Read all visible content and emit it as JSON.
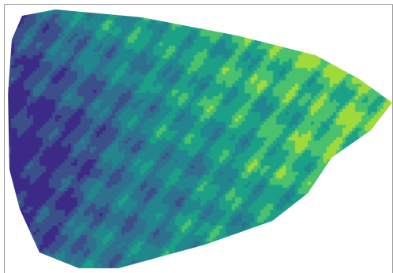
{
  "chart_data": {
    "type": "heatmap",
    "style": "filled-contour",
    "title": "",
    "xlabel": "",
    "ylabel": "",
    "colormap": "viridis",
    "levels": 7,
    "level_colors": [
      "#3b2a86",
      "#3a4f8a",
      "#2f6f8e",
      "#24868e",
      "#1fa187",
      "#4ac16d",
      "#9fda3a"
    ],
    "legend": "none",
    "grid": false,
    "axes": {
      "left_spine": true,
      "top_spine": true,
      "right_spine": true,
      "bottom_spine": false,
      "ticks": false
    },
    "x": [
      0,
      0.1,
      0.2,
      0.3,
      0.4,
      0.5,
      0.6,
      0.7,
      0.8,
      0.9,
      1.0
    ],
    "y": [
      0,
      0.125,
      0.25,
      0.375,
      0.5,
      0.625,
      0.75,
      0.875,
      1.0
    ],
    "z": [
      [
        1.2,
        1.8,
        2.6,
        3.4,
        3.8,
        4.0,
        4.2,
        4.4,
        4.6,
        4.8,
        5.0
      ],
      [
        0.8,
        1.6,
        2.4,
        3.0,
        3.4,
        3.8,
        4.0,
        4.2,
        4.6,
        4.8,
        5.0
      ],
      [
        0.6,
        1.4,
        2.0,
        2.8,
        3.2,
        3.6,
        3.8,
        4.0,
        4.2,
        4.6,
        4.8
      ],
      [
        0.4,
        1.0,
        1.8,
        2.4,
        3.0,
        3.4,
        3.6,
        3.8,
        4.2,
        4.4,
        4.6
      ],
      [
        0.3,
        0.9,
        1.6,
        2.2,
        2.8,
        3.2,
        3.6,
        4.0,
        4.2,
        4.4,
        4.6
      ],
      [
        0.4,
        1.0,
        1.6,
        2.2,
        2.6,
        3.0,
        3.4,
        3.8,
        4.2,
        4.4,
        4.8
      ],
      [
        0.6,
        1.2,
        1.8,
        2.2,
        2.6,
        3.0,
        3.2,
        3.6,
        4.0,
        4.4,
        4.8
      ],
      [
        1.0,
        1.6,
        2.0,
        2.4,
        2.8,
        3.2,
        3.4,
        3.8,
        4.2,
        4.6,
        5.2
      ],
      [
        1.4,
        2.0,
        2.6,
        2.8,
        3.0,
        3.4,
        3.6,
        4.0,
        4.4,
        4.8,
        5.4
      ]
    ]
  }
}
